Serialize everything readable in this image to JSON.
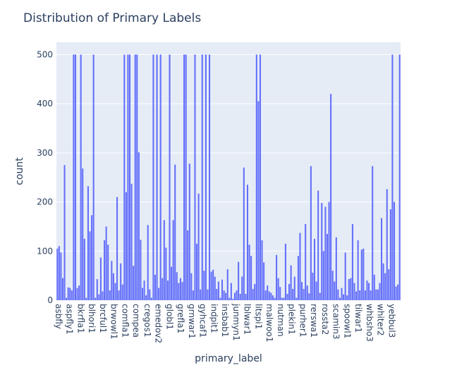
{
  "chart_data": {
    "type": "bar",
    "title": "Distribution of Primary Labels",
    "xlabel": "primary_label",
    "ylabel": "count",
    "ylim": [
      0,
      525
    ],
    "yticks": [
      0,
      100,
      200,
      300,
      400,
      500
    ],
    "grid": true,
    "bar_color": "#636efa",
    "plot_bg": "#e5ecf6",
    "xtick_labels": [
      "asbfly",
      "aspfly1",
      "bkrfla1",
      "blhori1",
      "brcful1",
      "brwowl1",
      "comfla1",
      "compea",
      "cregos1",
      "emedov2",
      "globl1",
      "grefla1",
      "grnwar1",
      "gyhcaf1",
      "indpit1",
      "insbab1",
      "junmyn1",
      "lblwar1",
      "litspi1",
      "malwoo1",
      "nutman",
      "plekin1",
      "purher1",
      "rerswa1",
      "rossta2",
      "scamin3",
      "spoowl1",
      "tilwar1",
      "whbsho3",
      "whiter2",
      "yebbul3"
    ],
    "values": [
      105,
      110,
      97,
      45,
      275,
      5,
      26,
      25,
      20,
      500,
      500,
      25,
      30,
      500,
      268,
      125,
      5,
      232,
      140,
      173,
      500,
      5,
      43,
      12,
      87,
      18,
      122,
      150,
      113,
      20,
      80,
      55,
      35,
      210,
      20,
      75,
      32,
      500,
      220,
      500,
      500,
      237,
      70,
      500,
      500,
      301,
      123,
      25,
      40,
      10,
      153,
      22,
      5,
      500,
      52,
      500,
      25,
      500,
      45,
      163,
      107,
      40,
      500,
      68,
      163,
      276,
      57,
      35,
      45,
      37,
      500,
      500,
      142,
      278,
      55,
      20,
      500,
      115,
      217,
      22,
      500,
      60,
      500,
      22,
      500,
      58,
      62,
      48,
      23,
      38,
      5,
      42,
      20,
      15,
      63,
      5,
      35,
      3,
      15,
      20,
      78,
      13,
      48,
      270,
      13,
      235,
      113,
      90,
      23,
      33,
      500,
      405,
      500,
      122,
      77,
      20,
      30,
      18,
      15,
      10,
      5,
      92,
      45,
      27,
      5,
      5,
      115,
      13,
      33,
      71,
      23,
      48,
      5,
      90,
      137,
      37,
      23,
      155,
      30,
      14,
      273,
      56,
      125,
      38,
      223,
      15,
      198,
      100,
      190,
      135,
      200,
      420,
      60,
      38,
      128,
      22,
      5,
      25,
      12,
      97,
      10,
      43,
      45,
      155,
      35,
      18,
      122,
      20,
      103,
      105,
      20,
      40,
      35,
      20,
      273,
      52,
      22,
      22,
      35,
      167,
      75,
      55,
      226,
      63,
      185,
      500,
      200,
      28,
      32,
      500
    ]
  }
}
